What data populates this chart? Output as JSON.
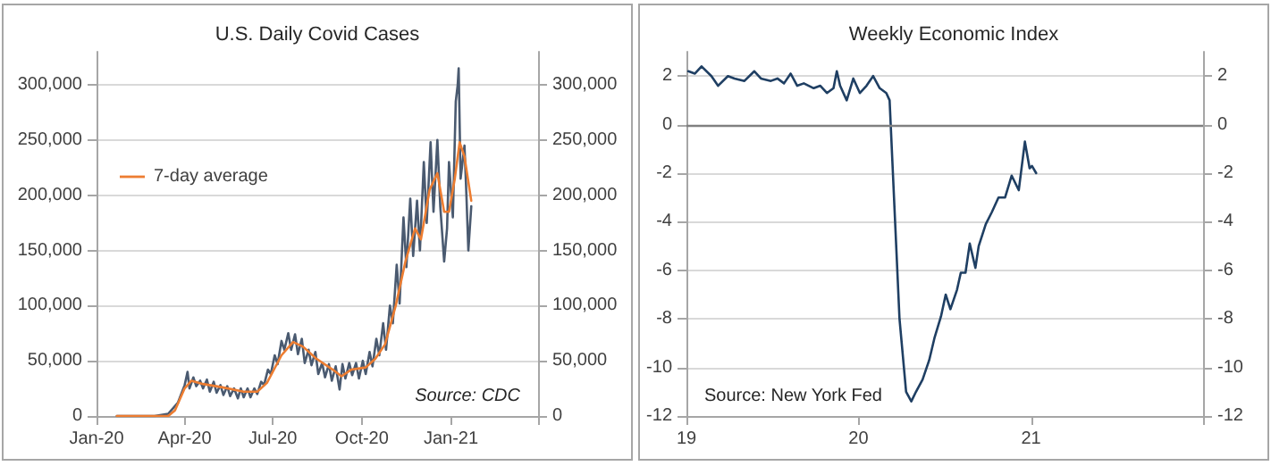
{
  "chart_data": [
    {
      "type": "line",
      "title": "U.S. Daily Covid Cases",
      "grid": "y",
      "legend": "top left",
      "marker": "none",
      "xlim": [
        "2020-01-01",
        "2021-04-01"
      ],
      "xticks": [
        {
          "value": "2020-01-01",
          "label": "Jan-20"
        },
        {
          "value": "2020-04-01",
          "label": "Apr-20"
        },
        {
          "value": "2020-07-01",
          "label": "Jul-20"
        },
        {
          "value": "2020-10-01",
          "label": "Oct-20"
        },
        {
          "value": "2021-01-01",
          "label": "Jan-21"
        },
        {
          "value": "2021-04-01",
          "label": null
        }
      ],
      "ylim": [
        0,
        330000
      ],
      "yticks": [
        0,
        {
          "value": 50000,
          "label": "50,000"
        },
        {
          "value": 100000,
          "label": "100,000"
        },
        {
          "value": 150000,
          "label": "150,000"
        },
        {
          "value": 200000,
          "label": "200,000"
        },
        {
          "value": 250000,
          "label": "250,000"
        },
        {
          "value": 300000,
          "label": "300,000"
        }
      ],
      "y2lim": [
        0,
        330000
      ],
      "y2ticks": [
        0,
        {
          "value": 50000,
          "label": "50,000"
        },
        {
          "value": 100000,
          "label": "100,000"
        },
        {
          "value": 150000,
          "label": "150,000"
        },
        {
          "value": 200000,
          "label": "200,000"
        },
        {
          "value": 250000,
          "label": "250,000"
        },
        {
          "value": 300000,
          "label": "300,000"
        }
      ],
      "annotations": [
        "Source: CDC"
      ],
      "series": [
        {
          "color": "#4a5a70",
          "x": [
            "2020-01-22",
            "2020-03-01",
            "2020-03-15",
            "2020-03-25",
            "2020-04-01",
            "2020-04-04",
            "2020-04-06",
            "2020-04-10",
            "2020-04-13",
            "2020-04-17",
            "2020-04-20",
            "2020-04-24",
            "2020-04-27",
            "2020-05-01",
            "2020-05-04",
            "2020-05-08",
            "2020-05-11",
            "2020-05-15",
            "2020-05-18",
            "2020-05-22",
            "2020-05-26",
            "2020-05-29",
            "2020-06-01",
            "2020-06-05",
            "2020-06-08",
            "2020-06-12",
            "2020-06-15",
            "2020-06-19",
            "2020-06-22",
            "2020-06-26",
            "2020-06-29",
            "2020-07-03",
            "2020-07-06",
            "2020-07-10",
            "2020-07-13",
            "2020-07-17",
            "2020-07-20",
            "2020-07-24",
            "2020-07-27",
            "2020-07-31",
            "2020-08-03",
            "2020-08-07",
            "2020-08-10",
            "2020-08-14",
            "2020-08-17",
            "2020-08-21",
            "2020-08-24",
            "2020-08-28",
            "2020-08-31",
            "2020-09-04",
            "2020-09-08",
            "2020-09-11",
            "2020-09-14",
            "2020-09-18",
            "2020-09-21",
            "2020-09-25",
            "2020-09-28",
            "2020-10-02",
            "2020-10-05",
            "2020-10-09",
            "2020-10-12",
            "2020-10-16",
            "2020-10-19",
            "2020-10-23",
            "2020-10-26",
            "2020-10-30",
            "2020-11-02",
            "2020-11-06",
            "2020-11-09",
            "2020-11-13",
            "2020-11-16",
            "2020-11-20",
            "2020-11-23",
            "2020-11-27",
            "2020-11-30",
            "2020-12-04",
            "2020-12-07",
            "2020-12-11",
            "2020-12-14",
            "2020-12-18",
            "2020-12-21",
            "2020-12-25",
            "2020-12-28",
            "2020-12-30",
            "2021-01-03",
            "2021-01-06",
            "2021-01-08",
            "2021-01-09",
            "2021-01-11",
            "2021-01-15",
            "2021-01-17",
            "2021-01-19",
            "2021-01-22"
          ],
          "values": [
            0,
            0,
            2000,
            12000,
            28000,
            40000,
            25000,
            35000,
            27000,
            32000,
            25000,
            33000,
            22000,
            31000,
            21000,
            28000,
            19000,
            27000,
            18000,
            25000,
            16000,
            25000,
            17000,
            25000,
            17000,
            25000,
            20000,
            31000,
            28000,
            42000,
            38000,
            55000,
            47000,
            68000,
            60000,
            75000,
            60000,
            74000,
            56000,
            70000,
            48000,
            60000,
            46000,
            58000,
            38000,
            48000,
            35000,
            47000,
            32000,
            45000,
            24000,
            47000,
            34000,
            48000,
            37000,
            48000,
            34000,
            50000,
            38000,
            58000,
            45000,
            70000,
            55000,
            84000,
            60000,
            100000,
            84000,
            137000,
            102000,
            180000,
            135000,
            197000,
            145000,
            195000,
            150000,
            230000,
            175000,
            248000,
            185000,
            250000,
            190000,
            140000,
            170000,
            230000,
            180000,
            285000,
            300000,
            315000,
            215000,
            245000,
            200000,
            150000,
            190000
          ]
        },
        {
          "name": "7-day average",
          "color": "#ed7d31",
          "x": [
            "2020-01-22",
            "2020-03-15",
            "2020-03-22",
            "2020-04-01",
            "2020-04-08",
            "2020-04-20",
            "2020-05-10",
            "2020-06-01",
            "2020-06-15",
            "2020-06-25",
            "2020-07-10",
            "2020-07-22",
            "2020-08-01",
            "2020-08-15",
            "2020-09-01",
            "2020-09-10",
            "2020-09-20",
            "2020-10-05",
            "2020-10-15",
            "2020-10-25",
            "2020-11-05",
            "2020-11-15",
            "2020-11-25",
            "2020-12-01",
            "2020-12-10",
            "2020-12-18",
            "2020-12-25",
            "2020-12-30",
            "2021-01-05",
            "2021-01-10",
            "2021-01-15",
            "2021-01-22"
          ],
          "values": [
            0,
            0,
            5000,
            25000,
            32000,
            29000,
            26000,
            22000,
            22000,
            30000,
            55000,
            67000,
            63000,
            52000,
            42000,
            36000,
            42000,
            44000,
            52000,
            65000,
            100000,
            140000,
            170000,
            160000,
            205000,
            220000,
            185000,
            185000,
            215000,
            248000,
            235000,
            195000
          ]
        }
      ]
    },
    {
      "type": "line",
      "title": "Weekly Economic Index",
      "grid": "y",
      "marker": "none",
      "xlim": [
        "2019-01-01",
        "2022-01-01"
      ],
      "xticks": [
        {
          "value": "2019-01-01",
          "label": "19"
        },
        {
          "value": "2020-01-01",
          "label": "20"
        },
        {
          "value": "2021-01-01",
          "label": "21"
        },
        {
          "value": "2022-01-01",
          "label": null
        }
      ],
      "ylim": [
        -12,
        3
      ],
      "yticks": [
        -12,
        -10,
        -8,
        -6,
        -4,
        -2,
        0,
        2
      ],
      "y2lim": [
        -12,
        3
      ],
      "y2ticks": [
        -12,
        -10,
        -8,
        -6,
        -4,
        -2,
        0,
        2
      ],
      "ref_lines": [
        {
          "axis": "y",
          "value": 0,
          "color": "#808080"
        }
      ],
      "annotations": [
        "Source: New York Fed"
      ],
      "series": [
        {
          "color": "#1f3f63",
          "x": [
            "2019-01-05",
            "2019-01-19",
            "2019-02-02",
            "2019-02-23",
            "2019-03-09",
            "2019-03-30",
            "2019-04-13",
            "2019-05-04",
            "2019-05-25",
            "2019-06-08",
            "2019-06-29",
            "2019-07-13",
            "2019-07-27",
            "2019-08-10",
            "2019-08-24",
            "2019-09-07",
            "2019-09-28",
            "2019-10-12",
            "2019-10-26",
            "2019-11-09",
            "2019-11-16",
            "2019-11-23",
            "2019-12-07",
            "2019-12-21",
            "2020-01-04",
            "2020-01-18",
            "2020-02-01",
            "2020-02-15",
            "2020-02-29",
            "2020-03-07",
            "2020-03-14",
            "2020-03-28",
            "2020-04-11",
            "2020-04-22",
            "2020-05-02",
            "2020-05-16",
            "2020-05-30",
            "2020-06-10",
            "2020-06-24",
            "2020-07-04",
            "2020-07-14",
            "2020-07-28",
            "2020-08-05",
            "2020-08-15",
            "2020-08-24",
            "2020-09-05",
            "2020-09-12",
            "2020-09-27",
            "2020-10-10",
            "2020-10-24",
            "2020-11-07",
            "2020-11-21",
            "2020-12-06",
            "2020-12-19",
            "2020-12-29",
            "2021-01-03",
            "2021-01-12"
          ],
          "values": [
            2.2,
            2.1,
            2.4,
            2.0,
            1.6,
            2.0,
            1.9,
            1.8,
            2.2,
            1.9,
            1.8,
            1.9,
            1.7,
            2.1,
            1.6,
            1.7,
            1.5,
            1.6,
            1.3,
            1.5,
            2.2,
            1.6,
            1.0,
            1.9,
            1.3,
            1.6,
            2.0,
            1.5,
            1.3,
            1.0,
            -2.0,
            -8.0,
            -11.0,
            -11.4,
            -11.0,
            -10.5,
            -9.7,
            -8.8,
            -7.9,
            -7.0,
            -7.6,
            -6.8,
            -6.1,
            -6.1,
            -4.9,
            -5.9,
            -5.0,
            -4.1,
            -3.6,
            -3.0,
            -3.0,
            -2.1,
            -2.7,
            -0.7,
            -1.8,
            -1.7,
            -2.0
          ]
        }
      ]
    }
  ]
}
